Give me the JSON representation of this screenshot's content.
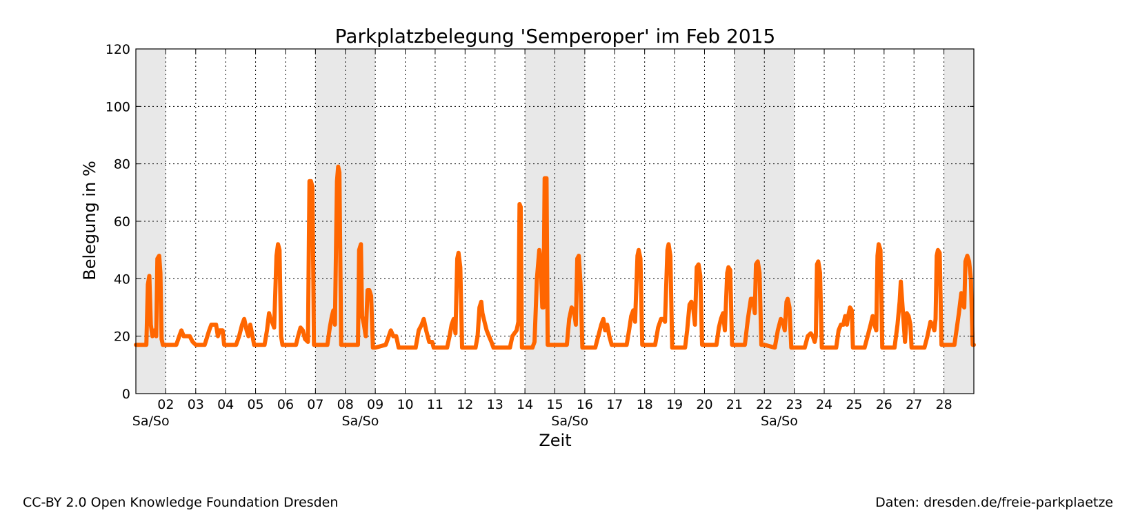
{
  "chart_data": {
    "type": "line",
    "title": "Parkplatzbelegung 'Semperoper' im Feb 2015",
    "xlabel": "Zeit",
    "ylabel": "Belegung in %",
    "ylim": [
      0,
      120
    ],
    "xlim": [
      "2015-02-01 00:00",
      "2015-03-01 00:00"
    ],
    "yticks": [
      "0",
      "20",
      "40",
      "60",
      "80",
      "100",
      "120"
    ],
    "xtick_labels": [
      "02",
      "03",
      "04",
      "05",
      "06",
      "07",
      "08",
      "09",
      "10",
      "11",
      "12",
      "13",
      "14",
      "15",
      "16",
      "17",
      "18",
      "19",
      "20",
      "21",
      "22",
      "23",
      "24",
      "25",
      "26",
      "27",
      "28"
    ],
    "weekend_label": "Sa/So",
    "weekend_label_days": [
      1,
      8,
      15,
      22
    ],
    "weekend_shading": [
      [
        1,
        2
      ],
      [
        7,
        9
      ],
      [
        14,
        16
      ],
      [
        21,
        23
      ],
      [
        28,
        29
      ]
    ],
    "grid": true,
    "line_color": "#ff6600",
    "shade_color": "#e8e8e8",
    "series": [
      {
        "x_unit": "day of February 2015 (fractional)",
        "y_unit": "%",
        "points": [
          [
            1.0,
            17
          ],
          [
            1.35,
            17
          ],
          [
            1.4,
            38
          ],
          [
            1.45,
            41
          ],
          [
            1.5,
            24
          ],
          [
            1.55,
            20
          ],
          [
            1.62,
            22
          ],
          [
            1.68,
            20
          ],
          [
            1.72,
            47
          ],
          [
            1.78,
            48
          ],
          [
            1.82,
            42
          ],
          [
            1.86,
            19
          ],
          [
            1.9,
            17
          ],
          [
            2.0,
            17
          ],
          [
            2.35,
            17
          ],
          [
            2.45,
            20
          ],
          [
            2.52,
            22
          ],
          [
            2.6,
            20
          ],
          [
            2.7,
            20
          ],
          [
            2.8,
            20
          ],
          [
            2.9,
            18
          ],
          [
            3.0,
            17
          ],
          [
            3.3,
            17
          ],
          [
            3.45,
            22
          ],
          [
            3.52,
            24
          ],
          [
            3.6,
            24
          ],
          [
            3.68,
            24
          ],
          [
            3.74,
            20
          ],
          [
            3.8,
            22
          ],
          [
            3.9,
            22
          ],
          [
            3.95,
            17
          ],
          [
            4.0,
            17
          ],
          [
            4.35,
            17
          ],
          [
            4.45,
            20
          ],
          [
            4.55,
            24
          ],
          [
            4.62,
            26
          ],
          [
            4.7,
            22
          ],
          [
            4.76,
            20
          ],
          [
            4.82,
            24
          ],
          [
            4.9,
            20
          ],
          [
            4.95,
            17
          ],
          [
            5.0,
            17
          ],
          [
            5.3,
            17
          ],
          [
            5.38,
            22
          ],
          [
            5.45,
            28
          ],
          [
            5.5,
            26
          ],
          [
            5.55,
            25
          ],
          [
            5.62,
            23
          ],
          [
            5.7,
            48
          ],
          [
            5.75,
            52
          ],
          [
            5.8,
            50
          ],
          [
            5.85,
            20
          ],
          [
            5.9,
            17
          ],
          [
            6.0,
            17
          ],
          [
            6.35,
            17
          ],
          [
            6.42,
            20
          ],
          [
            6.5,
            23
          ],
          [
            6.58,
            22
          ],
          [
            6.65,
            19
          ],
          [
            6.75,
            18
          ],
          [
            6.8,
            74
          ],
          [
            6.85,
            74
          ],
          [
            6.9,
            72
          ],
          [
            6.95,
            17
          ],
          [
            7.0,
            17
          ],
          [
            7.4,
            17
          ],
          [
            7.48,
            23
          ],
          [
            7.55,
            27
          ],
          [
            7.6,
            29
          ],
          [
            7.65,
            24
          ],
          [
            7.72,
            74
          ],
          [
            7.76,
            79
          ],
          [
            7.8,
            77
          ],
          [
            7.86,
            17
          ],
          [
            7.9,
            17
          ],
          [
            8.0,
            17
          ],
          [
            8.42,
            17
          ],
          [
            8.46,
            50
          ],
          [
            8.52,
            52
          ],
          [
            8.56,
            27
          ],
          [
            8.62,
            24
          ],
          [
            8.68,
            20
          ],
          [
            8.74,
            36
          ],
          [
            8.8,
            36
          ],
          [
            8.86,
            34
          ],
          [
            8.92,
            16
          ],
          [
            9.0,
            16
          ],
          [
            9.35,
            17
          ],
          [
            9.45,
            20
          ],
          [
            9.52,
            22
          ],
          [
            9.6,
            20
          ],
          [
            9.7,
            20
          ],
          [
            9.78,
            16
          ],
          [
            9.9,
            16
          ],
          [
            10.0,
            16
          ],
          [
            10.35,
            16
          ],
          [
            10.45,
            22
          ],
          [
            10.55,
            24
          ],
          [
            10.62,
            26
          ],
          [
            10.7,
            22
          ],
          [
            10.8,
            18
          ],
          [
            10.9,
            18
          ],
          [
            10.95,
            16
          ],
          [
            11.0,
            16
          ],
          [
            11.4,
            16
          ],
          [
            11.48,
            20
          ],
          [
            11.55,
            24
          ],
          [
            11.62,
            26
          ],
          [
            11.68,
            21
          ],
          [
            11.74,
            47
          ],
          [
            11.78,
            49
          ],
          [
            11.84,
            44
          ],
          [
            11.9,
            16
          ],
          [
            12.0,
            16
          ],
          [
            12.35,
            16
          ],
          [
            12.42,
            20
          ],
          [
            12.48,
            30
          ],
          [
            12.54,
            32
          ],
          [
            12.58,
            28
          ],
          [
            12.65,
            25
          ],
          [
            12.72,
            22
          ],
          [
            12.8,
            20
          ],
          [
            12.88,
            18
          ],
          [
            12.95,
            16
          ],
          [
            13.0,
            16
          ],
          [
            13.5,
            16
          ],
          [
            13.58,
            20
          ],
          [
            13.65,
            21
          ],
          [
            13.72,
            22
          ],
          [
            13.78,
            25
          ],
          [
            13.82,
            66
          ],
          [
            13.86,
            65
          ],
          [
            13.9,
            16
          ],
          [
            14.0,
            16
          ],
          [
            14.25,
            16
          ],
          [
            14.32,
            18
          ],
          [
            14.4,
            40
          ],
          [
            14.48,
            50
          ],
          [
            14.52,
            47
          ],
          [
            14.58,
            30
          ],
          [
            14.62,
            30
          ],
          [
            14.66,
            75
          ],
          [
            14.72,
            75
          ],
          [
            14.76,
            17
          ],
          [
            14.85,
            17
          ],
          [
            15.0,
            17
          ],
          [
            15.4,
            17
          ],
          [
            15.48,
            26
          ],
          [
            15.56,
            30
          ],
          [
            15.64,
            29
          ],
          [
            15.7,
            24
          ],
          [
            15.75,
            47
          ],
          [
            15.8,
            48
          ],
          [
            15.86,
            38
          ],
          [
            15.92,
            16
          ],
          [
            16.0,
            16
          ],
          [
            16.35,
            16
          ],
          [
            16.45,
            20
          ],
          [
            16.55,
            24
          ],
          [
            16.62,
            26
          ],
          [
            16.68,
            22
          ],
          [
            16.75,
            24
          ],
          [
            16.82,
            20
          ],
          [
            16.9,
            17
          ],
          [
            17.0,
            17
          ],
          [
            17.4,
            17
          ],
          [
            17.48,
            22
          ],
          [
            17.55,
            27
          ],
          [
            17.62,
            29
          ],
          [
            17.68,
            25
          ],
          [
            17.76,
            48
          ],
          [
            17.8,
            50
          ],
          [
            17.86,
            47
          ],
          [
            17.92,
            17
          ],
          [
            18.0,
            17
          ],
          [
            18.35,
            17
          ],
          [
            18.45,
            23
          ],
          [
            18.55,
            26
          ],
          [
            18.62,
            26
          ],
          [
            18.68,
            25
          ],
          [
            18.76,
            50
          ],
          [
            18.8,
            52
          ],
          [
            18.86,
            48
          ],
          [
            18.92,
            16
          ],
          [
            19.0,
            16
          ],
          [
            19.35,
            16
          ],
          [
            19.42,
            22
          ],
          [
            19.5,
            31
          ],
          [
            19.56,
            32
          ],
          [
            19.62,
            30
          ],
          [
            19.68,
            24
          ],
          [
            19.74,
            44
          ],
          [
            19.8,
            45
          ],
          [
            19.86,
            41
          ],
          [
            19.92,
            17
          ],
          [
            20.0,
            17
          ],
          [
            20.4,
            17
          ],
          [
            20.48,
            23
          ],
          [
            20.55,
            26
          ],
          [
            20.62,
            28
          ],
          [
            20.68,
            22
          ],
          [
            20.76,
            42
          ],
          [
            20.8,
            44
          ],
          [
            20.86,
            43
          ],
          [
            20.92,
            17
          ],
          [
            21.0,
            17
          ],
          [
            21.35,
            17
          ],
          [
            21.45,
            26
          ],
          [
            21.55,
            33
          ],
          [
            21.62,
            33
          ],
          [
            21.68,
            28
          ],
          [
            21.72,
            45
          ],
          [
            21.78,
            46
          ],
          [
            21.84,
            42
          ],
          [
            21.9,
            17
          ],
          [
            22.0,
            17
          ],
          [
            22.35,
            16
          ],
          [
            22.45,
            22
          ],
          [
            22.55,
            26
          ],
          [
            22.62,
            25
          ],
          [
            22.68,
            22
          ],
          [
            22.74,
            32
          ],
          [
            22.78,
            33
          ],
          [
            22.84,
            30
          ],
          [
            22.9,
            16
          ],
          [
            23.0,
            16
          ],
          [
            23.35,
            16
          ],
          [
            23.45,
            20
          ],
          [
            23.55,
            21
          ],
          [
            23.62,
            20
          ],
          [
            23.68,
            18
          ],
          [
            23.72,
            20
          ],
          [
            23.76,
            45
          ],
          [
            23.8,
            46
          ],
          [
            23.86,
            42
          ],
          [
            23.92,
            16
          ],
          [
            24.0,
            16
          ],
          [
            24.4,
            16
          ],
          [
            24.48,
            22
          ],
          [
            24.56,
            24
          ],
          [
            24.64,
            24
          ],
          [
            24.7,
            27
          ],
          [
            24.76,
            24
          ],
          [
            24.8,
            27
          ],
          [
            24.86,
            30
          ],
          [
            24.92,
            29
          ],
          [
            24.96,
            16
          ],
          [
            25.0,
            16
          ],
          [
            25.35,
            16
          ],
          [
            25.45,
            20
          ],
          [
            25.55,
            24
          ],
          [
            25.62,
            27
          ],
          [
            25.68,
            24
          ],
          [
            25.74,
            22
          ],
          [
            25.78,
            48
          ],
          [
            25.82,
            52
          ],
          [
            25.88,
            50
          ],
          [
            25.94,
            16
          ],
          [
            26.0,
            16
          ],
          [
            26.35,
            16
          ],
          [
            26.45,
            24
          ],
          [
            26.52,
            32
          ],
          [
            26.56,
            39
          ],
          [
            26.62,
            30
          ],
          [
            26.7,
            18
          ],
          [
            26.76,
            28
          ],
          [
            26.82,
            27
          ],
          [
            26.88,
            24
          ],
          [
            26.92,
            16
          ],
          [
            27.0,
            16
          ],
          [
            27.35,
            16
          ],
          [
            27.45,
            20
          ],
          [
            27.55,
            25
          ],
          [
            27.62,
            24
          ],
          [
            27.68,
            22
          ],
          [
            27.72,
            26
          ],
          [
            27.76,
            48
          ],
          [
            27.8,
            50
          ],
          [
            27.86,
            49
          ],
          [
            27.92,
            17
          ],
          [
            28.0,
            17
          ],
          [
            28.35,
            17
          ],
          [
            28.42,
            22
          ],
          [
            28.5,
            28
          ],
          [
            28.58,
            35
          ],
          [
            28.62,
            31
          ],
          [
            28.68,
            30
          ],
          [
            28.72,
            46
          ],
          [
            28.78,
            48
          ],
          [
            28.84,
            46
          ],
          [
            28.9,
            40
          ],
          [
            28.96,
            17
          ],
          [
            29.0,
            17
          ]
        ]
      }
    ]
  },
  "footer": {
    "credit_left": "CC-BY 2.0 Open Knowledge Foundation Dresden",
    "credit_right": "Daten: dresden.de/freie-parkplaetze"
  }
}
